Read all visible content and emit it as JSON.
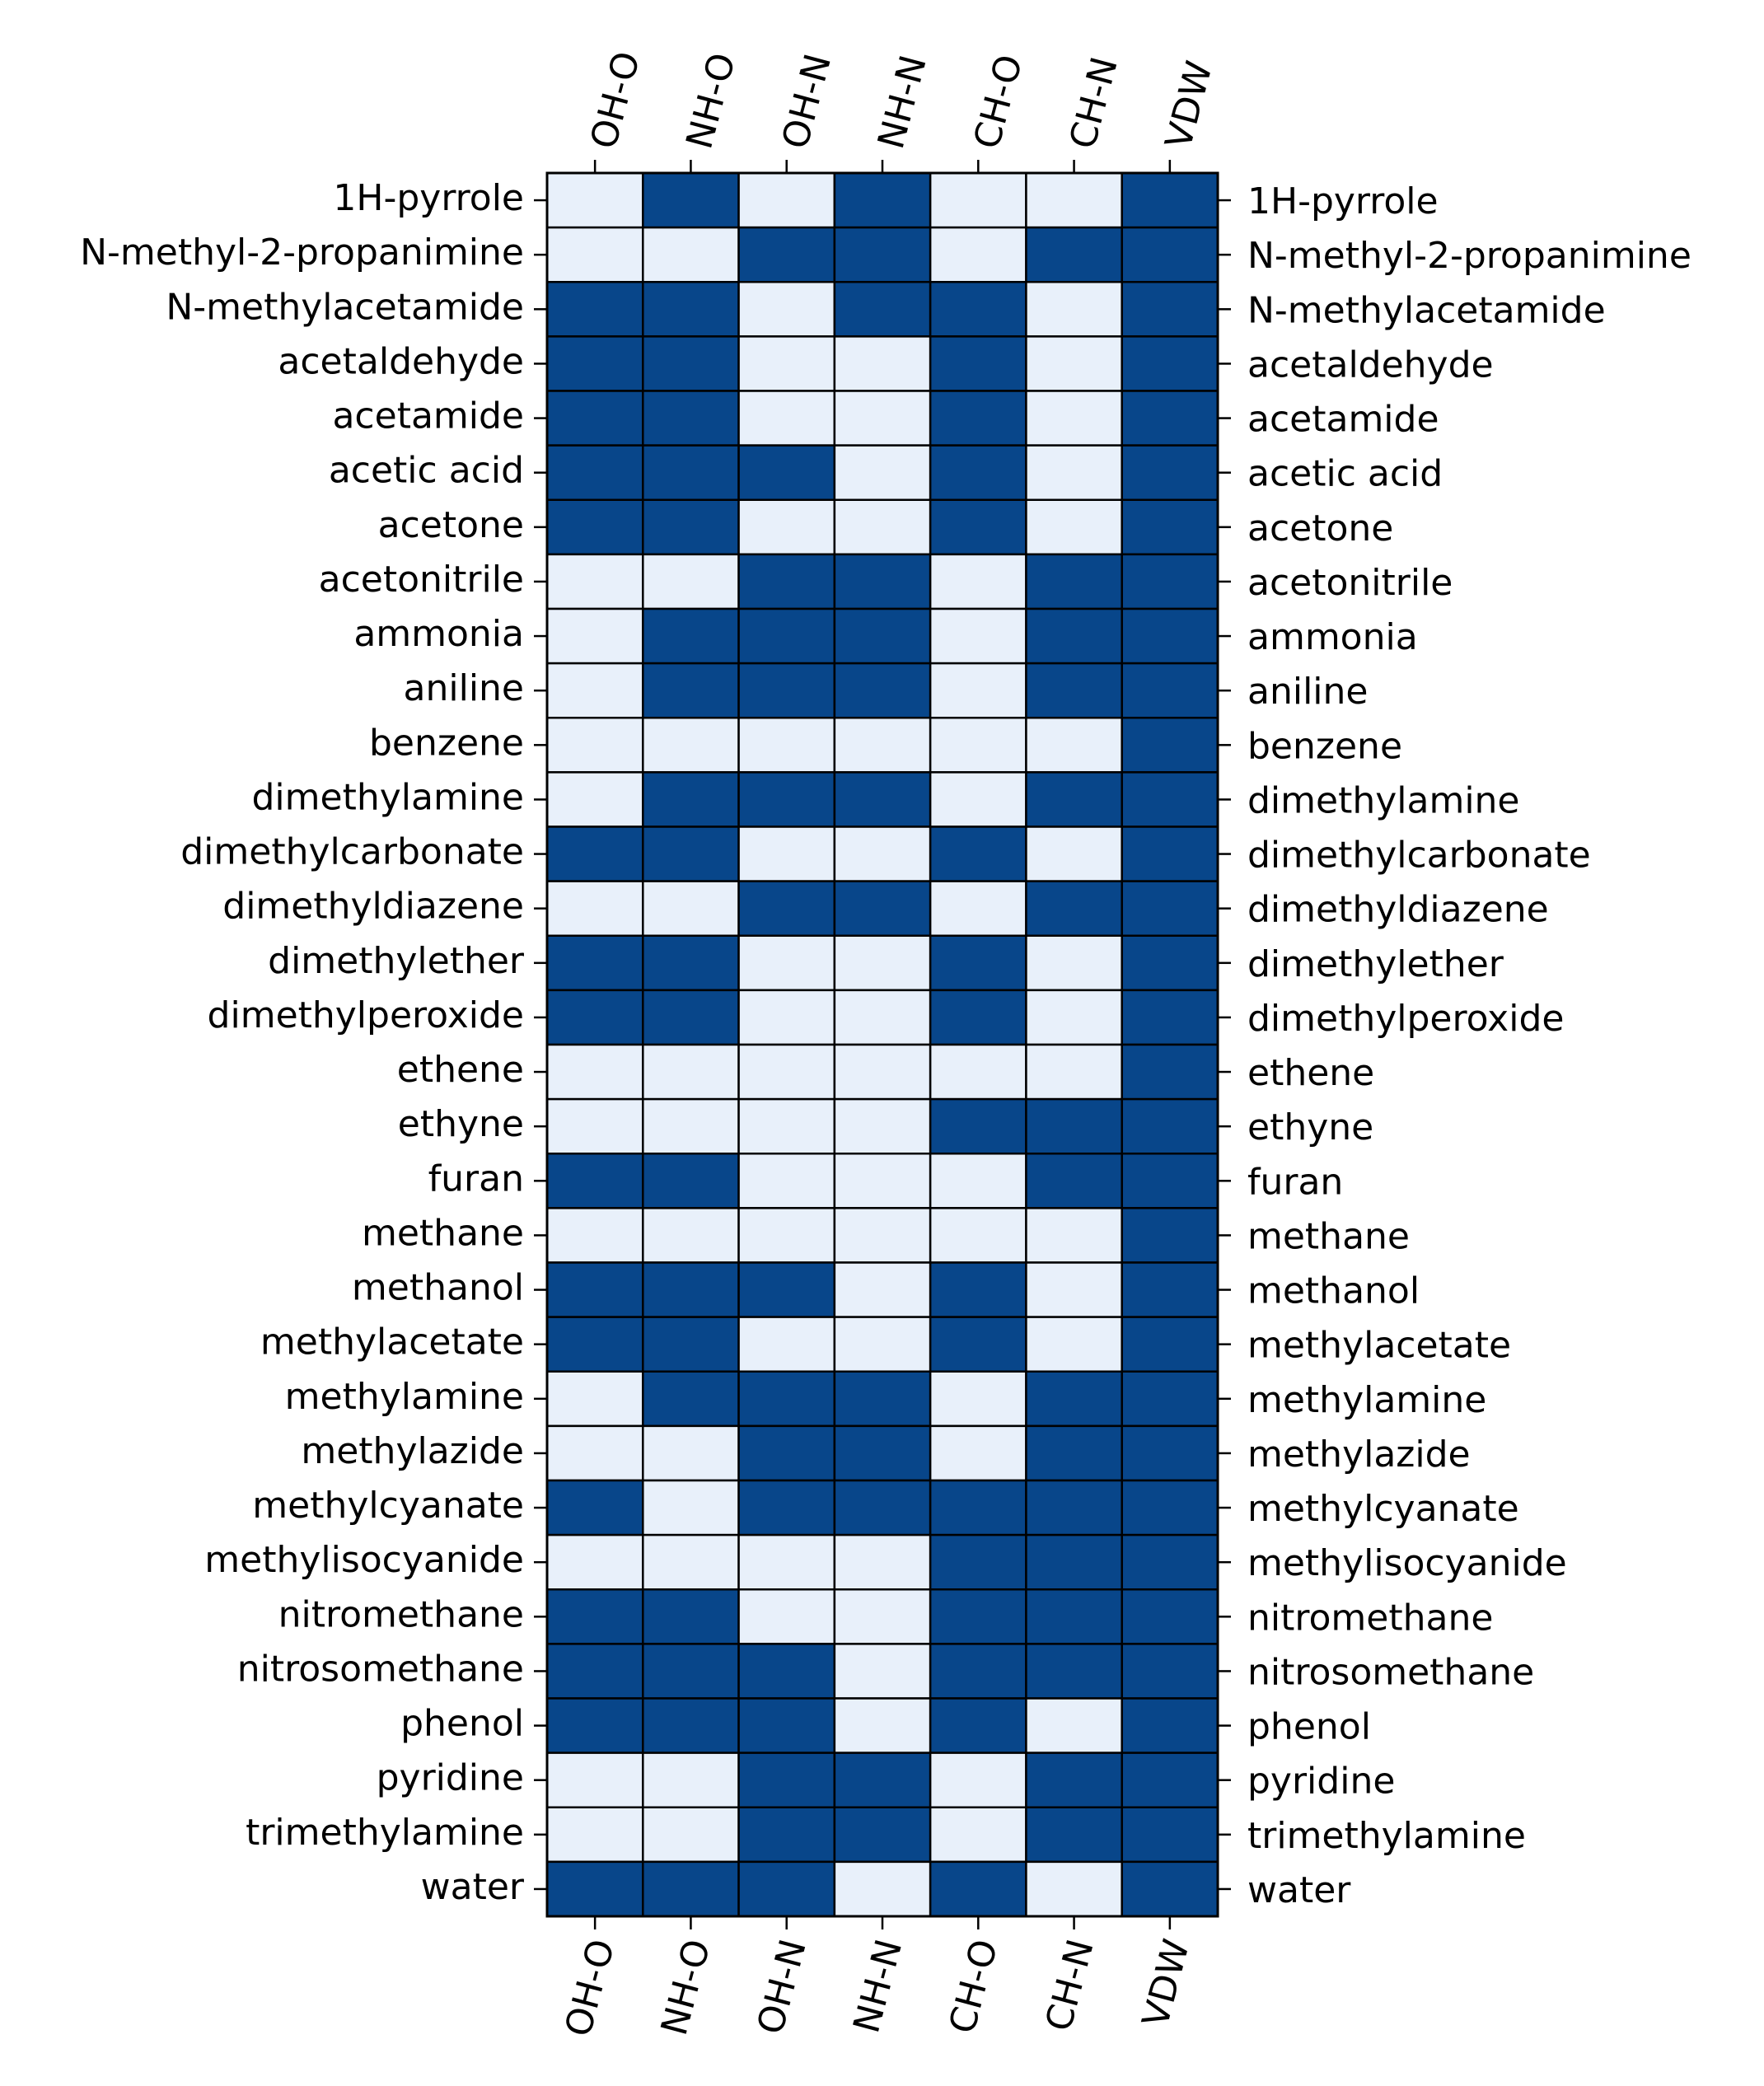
{
  "chart_data": {
    "type": "heatmap",
    "title": "",
    "xlabel": "",
    "ylabel": "",
    "columns": [
      "OH-O",
      "NH-O",
      "OH-N",
      "NH-N",
      "CH-O",
      "CH-N",
      "VDW"
    ],
    "rows": [
      "1H-pyrrole",
      "N-methyl-2-propanimine",
      "N-methylacetamide",
      "acetaldehyde",
      "acetamide",
      "acetic acid",
      "acetone",
      "acetonitrile",
      "ammonia",
      "aniline",
      "benzene",
      "dimethylamine",
      "dimethylcarbonate",
      "dimethyldiazene",
      "dimethylether",
      "dimethylperoxide",
      "ethene",
      "ethyne",
      "furan",
      "methane",
      "methanol",
      "methylacetate",
      "methylamine",
      "methylazide",
      "methylcyanate",
      "methylisocyanide",
      "nitromethane",
      "nitrosomethane",
      "phenol",
      "pyridine",
      "trimethylamine",
      "water"
    ],
    "values": [
      [
        0,
        1,
        0,
        1,
        0,
        0,
        1
      ],
      [
        0,
        0,
        1,
        1,
        0,
        1,
        1
      ],
      [
        1,
        1,
        0,
        1,
        1,
        0,
        1
      ],
      [
        1,
        1,
        0,
        0,
        1,
        0,
        1
      ],
      [
        1,
        1,
        0,
        0,
        1,
        0,
        1
      ],
      [
        1,
        1,
        1,
        0,
        1,
        0,
        1
      ],
      [
        1,
        1,
        0,
        0,
        1,
        0,
        1
      ],
      [
        0,
        0,
        1,
        1,
        0,
        1,
        1
      ],
      [
        0,
        1,
        1,
        1,
        0,
        1,
        1
      ],
      [
        0,
        1,
        1,
        1,
        0,
        1,
        1
      ],
      [
        0,
        0,
        0,
        0,
        0,
        0,
        1
      ],
      [
        0,
        1,
        1,
        1,
        0,
        1,
        1
      ],
      [
        1,
        1,
        0,
        0,
        1,
        0,
        1
      ],
      [
        0,
        0,
        1,
        1,
        0,
        1,
        1
      ],
      [
        1,
        1,
        0,
        0,
        1,
        0,
        1
      ],
      [
        1,
        1,
        0,
        0,
        1,
        0,
        1
      ],
      [
        0,
        0,
        0,
        0,
        0,
        0,
        1
      ],
      [
        0,
        0,
        0,
        0,
        1,
        1,
        1
      ],
      [
        1,
        1,
        0,
        0,
        0,
        1,
        1
      ],
      [
        0,
        0,
        0,
        0,
        0,
        0,
        1
      ],
      [
        1,
        1,
        1,
        0,
        1,
        0,
        1
      ],
      [
        1,
        1,
        0,
        0,
        1,
        0,
        1
      ],
      [
        0,
        1,
        1,
        1,
        0,
        1,
        1
      ],
      [
        0,
        0,
        1,
        1,
        0,
        1,
        1
      ],
      [
        1,
        0,
        1,
        1,
        1,
        1,
        1
      ],
      [
        0,
        0,
        0,
        0,
        1,
        1,
        1
      ],
      [
        1,
        1,
        0,
        0,
        1,
        1,
        1
      ],
      [
        1,
        1,
        1,
        0,
        1,
        1,
        1
      ],
      [
        1,
        1,
        1,
        0,
        1,
        0,
        1
      ],
      [
        0,
        0,
        1,
        1,
        0,
        1,
        1
      ],
      [
        0,
        0,
        1,
        1,
        0,
        1,
        1
      ],
      [
        1,
        1,
        1,
        0,
        1,
        0,
        1
      ]
    ],
    "colors": {
      "on": "#08468a",
      "off": "#e8f0fa",
      "edge": "#000000"
    },
    "legend": "none",
    "grid": false
  }
}
